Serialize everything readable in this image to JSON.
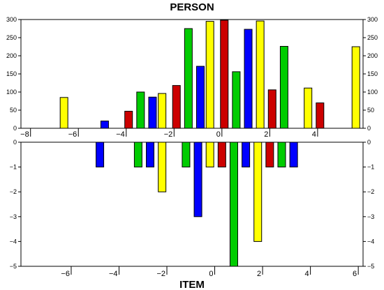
{
  "chart_data": [
    {
      "type": "bar",
      "title": "PERSON",
      "xlim": [
        -8.4,
        5.9
      ],
      "ylim": [
        0,
        300
      ],
      "x_ticks": [
        -8,
        -6,
        -4,
        -2,
        0,
        2,
        4
      ],
      "y_ticks": [
        0,
        50,
        100,
        150,
        200,
        250,
        300
      ],
      "grid": false,
      "bars": [
        {
          "x": -6.6,
          "value": 85,
          "color": "#ffff00"
        },
        {
          "x": -4.9,
          "value": 20,
          "color": "#0000ff"
        },
        {
          "x": -3.9,
          "value": 47,
          "color": "#cc0000"
        },
        {
          "x": -3.4,
          "value": 100,
          "color": "#00cc00"
        },
        {
          "x": -2.9,
          "value": 86,
          "color": "#0000ff"
        },
        {
          "x": -2.5,
          "value": 96,
          "color": "#ffff00"
        },
        {
          "x": -1.9,
          "value": 118,
          "color": "#cc0000"
        },
        {
          "x": -1.4,
          "value": 275,
          "color": "#00cc00"
        },
        {
          "x": -0.9,
          "value": 171,
          "color": "#0000ff"
        },
        {
          "x": -0.5,
          "value": 295,
          "color": "#ffff00"
        },
        {
          "x": 0.1,
          "value": 298,
          "color": "#cc0000"
        },
        {
          "x": 0.6,
          "value": 156,
          "color": "#00cc00"
        },
        {
          "x": 1.1,
          "value": 273,
          "color": "#0000ff"
        },
        {
          "x": 1.6,
          "value": 296,
          "color": "#ffff00"
        },
        {
          "x": 2.1,
          "value": 106,
          "color": "#cc0000"
        },
        {
          "x": 2.6,
          "value": 226,
          "color": "#00cc00"
        },
        {
          "x": 3.6,
          "value": 111,
          "color": "#ffff00"
        },
        {
          "x": 4.1,
          "value": 70,
          "color": "#cc0000"
        },
        {
          "x": 5.6,
          "value": 225,
          "color": "#ffff00"
        }
      ]
    },
    {
      "type": "bar",
      "title": "ITEM",
      "xlim": [
        -8.1,
        6.2
      ],
      "ylim": [
        -5,
        0
      ],
      "x_ticks": [
        -6,
        -4,
        -2,
        0,
        2,
        4,
        6
      ],
      "y_ticks": [
        0,
        -1,
        -2,
        -3,
        -4,
        -5
      ],
      "grid": false,
      "bars": [
        {
          "x": -4.8,
          "value": -1,
          "color": "#0000ff"
        },
        {
          "x": -3.2,
          "value": -1,
          "color": "#00cc00"
        },
        {
          "x": -2.7,
          "value": -1,
          "color": "#0000ff"
        },
        {
          "x": -2.2,
          "value": -2,
          "color": "#ffff00"
        },
        {
          "x": -1.2,
          "value": -1,
          "color": "#00cc00"
        },
        {
          "x": -0.7,
          "value": -3,
          "color": "#0000ff"
        },
        {
          "x": -0.2,
          "value": -1,
          "color": "#ffff00"
        },
        {
          "x": 0.3,
          "value": -1,
          "color": "#cc0000"
        },
        {
          "x": 0.8,
          "value": -5,
          "color": "#00cc00"
        },
        {
          "x": 1.3,
          "value": -1,
          "color": "#0000ff"
        },
        {
          "x": 1.8,
          "value": -4,
          "color": "#ffff00"
        },
        {
          "x": 2.3,
          "value": -1,
          "color": "#cc0000"
        },
        {
          "x": 2.8,
          "value": -1,
          "color": "#00cc00"
        },
        {
          "x": 3.3,
          "value": -1,
          "color": "#0000ff"
        }
      ]
    }
  ]
}
